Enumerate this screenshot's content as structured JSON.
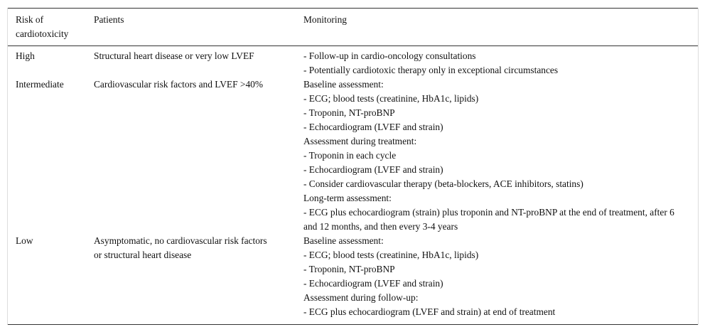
{
  "table": {
    "header": [
      "Risk of cardiotoxicity",
      "Patients",
      "Monitoring"
    ],
    "rows": [
      [
        "High",
        "Structural heart disease or very low LVEF",
        [
          "- Follow-up in cardio-oncology consultations",
          "- Potentially cardiotoxic therapy only in exceptional circumstances"
        ]
      ],
      [
        "Intermediate",
        "Cardiovascular risk factors and LVEF >40%",
        [
          "Baseline assessment:",
          "- ECG; blood tests (creatinine, HbA1c, lipids)",
          "- Troponin, NT-proBNP",
          "- Echocardiogram (LVEF and strain)",
          "Assessment during treatment:",
          "- Troponin in each cycle",
          "- Echocardiogram (LVEF and strain)",
          "- Consider cardiovascular therapy (beta-blockers, ACE inhibitors, statins)",
          "Long-term assessment:",
          "- ECG plus echocardiogram (strain) plus troponin and NT-proBNP at the end of treatment, after 6 and 12 months, and then every 3-4 years"
        ]
      ],
      [
        "Low",
        "Asymptomatic, no cardiovascular risk factors or structural heart disease",
        [
          "Baseline assessment:",
          "- ECG; blood tests (creatinine, HbA1c, lipids)",
          "- Troponin, NT-proBNP",
          "- Echocardiogram (LVEF and strain)",
          "Assessment during follow-up:",
          "- ECG plus echocardiogram (LVEF and strain) at end of treatment"
        ]
      ]
    ]
  }
}
